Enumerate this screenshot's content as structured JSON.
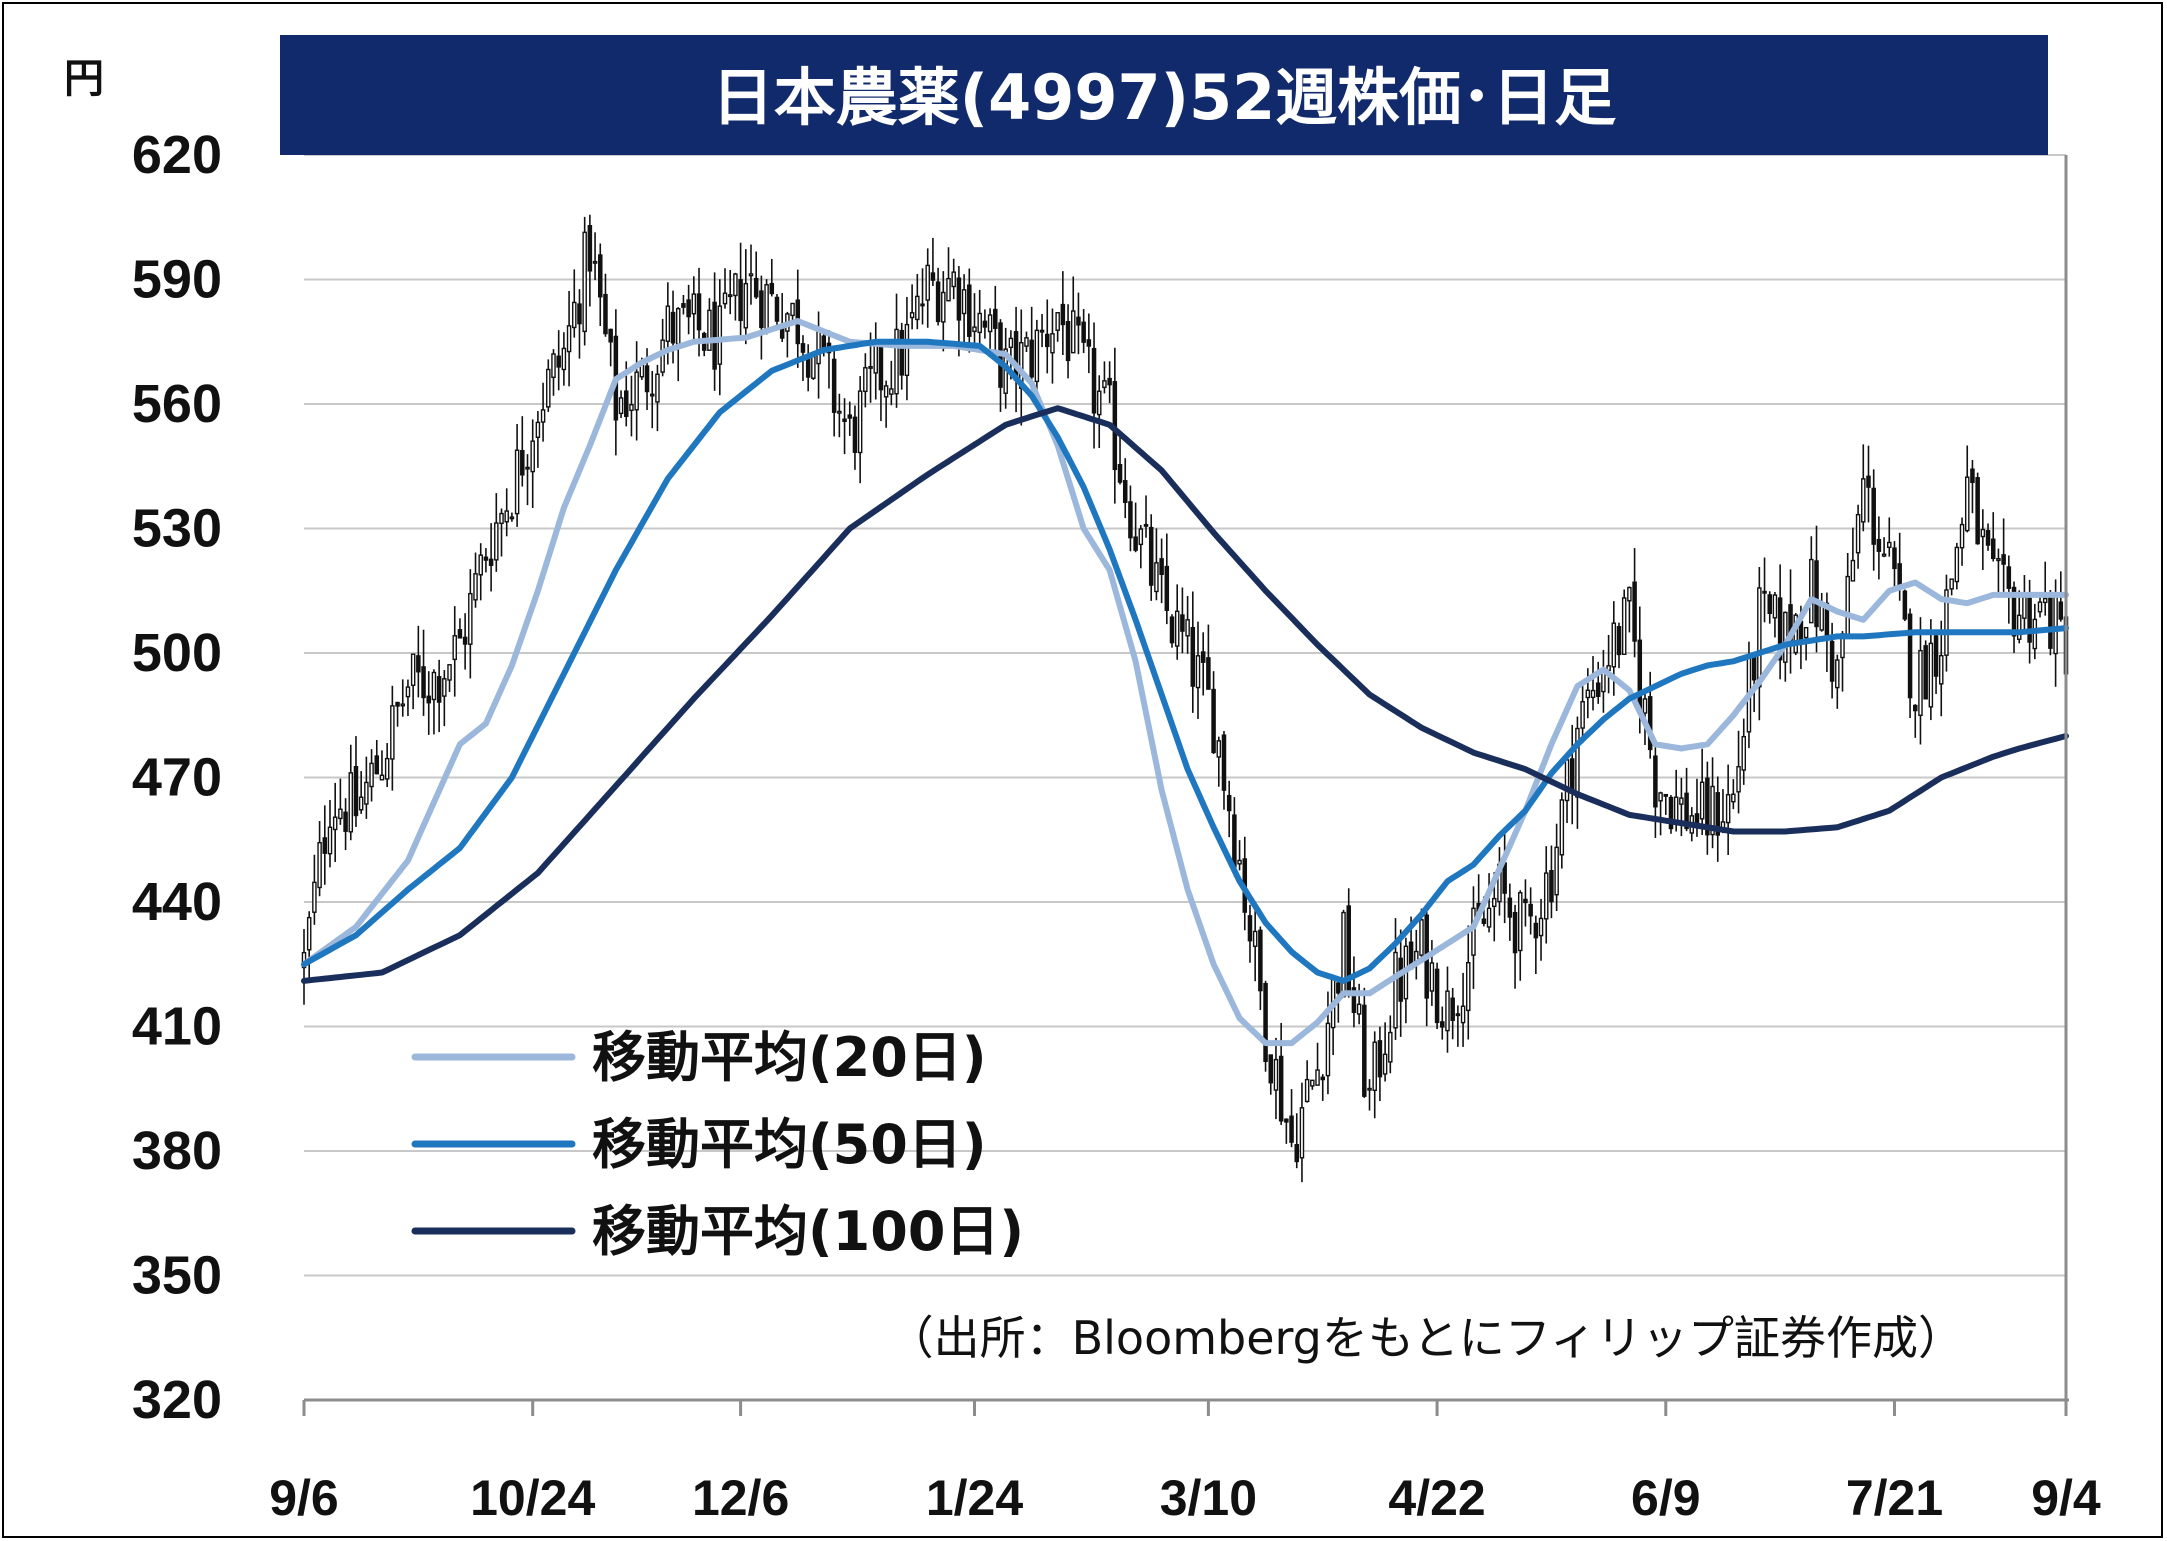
{
  "chart_data": {
    "type": "candlestick",
    "title": "日本農薬(4997)52週株価･日足",
    "unit": "円",
    "ylim": [
      320,
      620
    ],
    "y_ticks": [
      "620",
      "590",
      "560",
      "530",
      "500",
      "470",
      "440",
      "410",
      "380",
      "350",
      "320"
    ],
    "x_ticks": [
      "9/6",
      "10/24",
      "12/6",
      "1/24",
      "3/10",
      "4/22",
      "6/9",
      "7/21",
      "9/4"
    ],
    "source": "（出所：Bloombergをもとにフィリップ証券作成）",
    "price_path": [
      [
        0,
        425
      ],
      [
        5,
        465
      ],
      [
        10,
        462
      ],
      [
        15,
        475
      ],
      [
        20,
        492
      ],
      [
        25,
        494
      ],
      [
        30,
        502
      ],
      [
        35,
        525
      ],
      [
        40,
        540
      ],
      [
        45,
        560
      ],
      [
        50,
        572
      ],
      [
        55,
        598
      ],
      [
        60,
        560
      ],
      [
        65,
        565
      ],
      [
        70,
        578
      ],
      [
        75,
        578
      ],
      [
        80,
        575
      ],
      [
        85,
        590
      ],
      [
        90,
        585
      ],
      [
        95,
        580
      ],
      [
        100,
        568
      ],
      [
        105,
        552
      ],
      [
        110,
        566
      ],
      [
        115,
        572
      ],
      [
        120,
        588
      ],
      [
        125,
        590
      ],
      [
        130,
        580
      ],
      [
        135,
        568
      ],
      [
        140,
        572
      ],
      [
        145,
        582
      ],
      [
        150,
        568
      ],
      [
        155,
        556
      ],
      [
        160,
        530
      ],
      [
        165,
        512
      ],
      [
        170,
        500
      ],
      [
        175,
        485
      ],
      [
        180,
        450
      ],
      [
        185,
        410
      ],
      [
        190,
        382
      ],
      [
        195,
        400
      ],
      [
        200,
        430
      ],
      [
        205,
        392
      ],
      [
        210,
        420
      ],
      [
        215,
        428
      ],
      [
        220,
        414
      ],
      [
        225,
        430
      ],
      [
        230,
        442
      ],
      [
        235,
        432
      ],
      [
        240,
        448
      ],
      [
        245,
        482
      ],
      [
        250,
        498
      ],
      [
        255,
        508
      ],
      [
        260,
        470
      ],
      [
        265,
        462
      ],
      [
        270,
        460
      ],
      [
        275,
        465
      ],
      [
        280,
        508
      ],
      [
        285,
        504
      ],
      [
        290,
        515
      ],
      [
        295,
        495
      ],
      [
        300,
        540
      ],
      [
        305,
        520
      ],
      [
        310,
        492
      ],
      [
        315,
        505
      ],
      [
        320,
        540
      ],
      [
        325,
        515
      ],
      [
        330,
        510
      ],
      [
        335,
        510
      ],
      [
        339,
        502
      ]
    ],
    "series": [
      {
        "name": "移動平均(20日)",
        "color": "#9bb7db",
        "values": [
          [
            0,
            425
          ],
          [
            10,
            434
          ],
          [
            20,
            450
          ],
          [
            30,
            478
          ],
          [
            35,
            483
          ],
          [
            40,
            497
          ],
          [
            45,
            515
          ],
          [
            50,
            535
          ],
          [
            55,
            550
          ],
          [
            60,
            566
          ],
          [
            65,
            570
          ],
          [
            70,
            573
          ],
          [
            75,
            575
          ],
          [
            85,
            576
          ],
          [
            95,
            580
          ],
          [
            105,
            575
          ],
          [
            115,
            574
          ],
          [
            125,
            574
          ],
          [
            135,
            572
          ],
          [
            140,
            565
          ],
          [
            145,
            550
          ],
          [
            150,
            530
          ],
          [
            155,
            520
          ],
          [
            160,
            498
          ],
          [
            165,
            467
          ],
          [
            170,
            443
          ],
          [
            175,
            425
          ],
          [
            180,
            412
          ],
          [
            185,
            406
          ],
          [
            190,
            406
          ],
          [
            195,
            411
          ],
          [
            200,
            418
          ],
          [
            205,
            418
          ],
          [
            210,
            422
          ],
          [
            215,
            426
          ],
          [
            220,
            430
          ],
          [
            225,
            434
          ],
          [
            230,
            448
          ],
          [
            235,
            462
          ],
          [
            240,
            478
          ],
          [
            245,
            492
          ],
          [
            250,
            496
          ],
          [
            255,
            491
          ],
          [
            260,
            478
          ],
          [
            265,
            477
          ],
          [
            270,
            478
          ],
          [
            275,
            485
          ],
          [
            280,
            493
          ],
          [
            285,
            502
          ],
          [
            290,
            513
          ],
          [
            295,
            510
          ],
          [
            300,
            508
          ],
          [
            305,
            515
          ],
          [
            310,
            517
          ],
          [
            315,
            513
          ],
          [
            320,
            512
          ],
          [
            325,
            514
          ],
          [
            330,
            514
          ],
          [
            339,
            514
          ]
        ]
      },
      {
        "name": "移動平均(50日)",
        "color": "#1f77c0",
        "values": [
          [
            0,
            425
          ],
          [
            10,
            432
          ],
          [
            20,
            443
          ],
          [
            30,
            453
          ],
          [
            40,
            470
          ],
          [
            50,
            495
          ],
          [
            60,
            520
          ],
          [
            70,
            542
          ],
          [
            80,
            558
          ],
          [
            90,
            568
          ],
          [
            100,
            573
          ],
          [
            110,
            575
          ],
          [
            120,
            575
          ],
          [
            130,
            574
          ],
          [
            135,
            569
          ],
          [
            140,
            562
          ],
          [
            145,
            552
          ],
          [
            150,
            540
          ],
          [
            155,
            525
          ],
          [
            160,
            508
          ],
          [
            165,
            490
          ],
          [
            170,
            472
          ],
          [
            175,
            458
          ],
          [
            180,
            445
          ],
          [
            185,
            435
          ],
          [
            190,
            428
          ],
          [
            195,
            423
          ],
          [
            200,
            421
          ],
          [
            205,
            424
          ],
          [
            210,
            430
          ],
          [
            215,
            437
          ],
          [
            220,
            445
          ],
          [
            225,
            449
          ],
          [
            230,
            456
          ],
          [
            235,
            462
          ],
          [
            240,
            471
          ],
          [
            245,
            478
          ],
          [
            250,
            484
          ],
          [
            255,
            489
          ],
          [
            260,
            492
          ],
          [
            265,
            495
          ],
          [
            270,
            497
          ],
          [
            275,
            498
          ],
          [
            280,
            500
          ],
          [
            285,
            502
          ],
          [
            290,
            503
          ],
          [
            295,
            504
          ],
          [
            300,
            504
          ],
          [
            310,
            505
          ],
          [
            320,
            505
          ],
          [
            330,
            505
          ],
          [
            339,
            506
          ]
        ]
      },
      {
        "name": "移動平均(100日)",
        "color": "#1a2e5c",
        "values": [
          [
            0,
            421
          ],
          [
            15,
            423
          ],
          [
            30,
            432
          ],
          [
            45,
            447
          ],
          [
            60,
            468
          ],
          [
            75,
            489
          ],
          [
            90,
            509
          ],
          [
            105,
            530
          ],
          [
            120,
            543
          ],
          [
            135,
            555
          ],
          [
            145,
            559
          ],
          [
            155,
            555
          ],
          [
            165,
            544
          ],
          [
            175,
            529
          ],
          [
            185,
            515
          ],
          [
            195,
            502
          ],
          [
            205,
            490
          ],
          [
            215,
            482
          ],
          [
            225,
            476
          ],
          [
            235,
            472
          ],
          [
            245,
            466
          ],
          [
            255,
            461
          ],
          [
            265,
            459
          ],
          [
            275,
            457
          ],
          [
            285,
            457
          ],
          [
            295,
            458
          ],
          [
            305,
            462
          ],
          [
            315,
            470
          ],
          [
            325,
            475
          ],
          [
            330,
            477
          ],
          [
            339,
            480
          ]
        ]
      }
    ]
  }
}
